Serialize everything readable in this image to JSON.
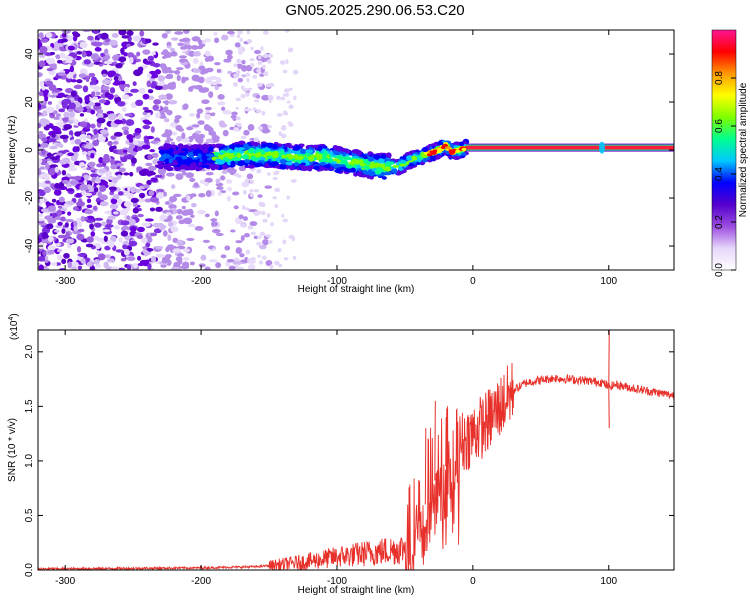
{
  "figure_title": "GN05.2025.290.06.53.C20",
  "colors": {
    "cmap": [
      "#ffffff",
      "#d9c4f5",
      "#8a2be2",
      "#4b0082",
      "#0000ff",
      "#00c8ff",
      "#00ff80",
      "#7fff00",
      "#ffff00",
      "#ff8c00",
      "#ff0000",
      "#ff1493"
    ],
    "snr_line": "#e8302a",
    "horizontal_track": "#ff1c3c"
  },
  "chart_data": [
    {
      "id": "spectrogram",
      "type": "heatmap",
      "xlabel": "Height of straight line (km)",
      "ylabel": "Frequency (Hz)",
      "xlim": [
        -320,
        148
      ],
      "ylim": [
        -50,
        50
      ],
      "xticks": [
        -300,
        -200,
        -100,
        0,
        100
      ],
      "xtick_labels": [
        "-300",
        "-200",
        "-100",
        "0",
        "100"
      ],
      "yticks": [
        -40,
        -20,
        0,
        20,
        40
      ],
      "ytick_labels": [
        "-40",
        "-20",
        "0",
        "20",
        "40"
      ],
      "colorbar": {
        "label": "Normalized spectral amplitude",
        "range": [
          0,
          1
        ],
        "ticks": [
          0.0,
          0.2,
          0.4,
          0.6,
          0.8
        ],
        "tick_labels": [
          "0.0",
          "0.2",
          "0.4",
          "0.6",
          "0.8"
        ]
      },
      "ridge": {
        "x": [
          -210,
          -190,
          -170,
          -150,
          -130,
          -110,
          -90,
          -70,
          -55,
          -45,
          -35,
          -25,
          -20,
          -15,
          -10,
          -5,
          0,
          95,
          148
        ],
        "y": [
          -3,
          -3,
          -2,
          -2,
          -3,
          -3,
          -5,
          -7,
          -7,
          -4,
          -2,
          0,
          2,
          -1,
          0,
          1,
          1,
          1,
          1
        ]
      },
      "noise_region_x": [
        -320,
        -170
      ],
      "constant_line_x": [
        -5,
        148
      ],
      "constant_line_y": 1
    },
    {
      "id": "snr",
      "type": "line",
      "xlabel": "Height of straight line (km)",
      "ylabel": "SNR (10 * v/v)",
      "multiplier": "(x10",
      "multiplier_exp": "4",
      "multiplier_close": ")",
      "xlim": [
        -320,
        148
      ],
      "ylim": [
        0,
        2.2
      ],
      "xticks": [
        -300,
        -200,
        -100,
        0,
        100
      ],
      "xtick_labels": [
        "-300",
        "-200",
        "-100",
        "0",
        "100"
      ],
      "yticks": [
        0,
        0.5,
        1.0,
        1.5,
        2.0
      ],
      "ytick_labels": [
        "0.0",
        "0.5",
        "1.0",
        "1.5",
        "2.0"
      ],
      "envelope": {
        "x": [
          -320,
          -250,
          -200,
          -160,
          -140,
          -120,
          -100,
          -80,
          -60,
          -50,
          -45,
          -40,
          -35,
          -30,
          -25,
          -20,
          -15,
          -10,
          -5,
          0,
          10,
          20,
          30,
          40,
          60,
          80,
          95,
          100,
          105,
          120,
          148
        ],
        "y": [
          0.01,
          0.015,
          0.02,
          0.03,
          0.05,
          0.08,
          0.12,
          0.15,
          0.18,
          0.2,
          0.3,
          0.45,
          0.6,
          0.8,
          0.85,
          0.95,
          1.05,
          1.15,
          1.2,
          1.25,
          1.35,
          1.5,
          1.65,
          1.72,
          1.76,
          1.74,
          1.72,
          1.68,
          1.7,
          1.66,
          1.6
        ]
      },
      "spikes": [
        {
          "x": 100,
          "y": 2.2
        },
        {
          "x": 100,
          "y": 1.3
        },
        {
          "x": -28,
          "y": 1.55
        },
        {
          "x": -35,
          "y": 1.3
        },
        {
          "x": -20,
          "y": 1.4
        }
      ]
    }
  ]
}
